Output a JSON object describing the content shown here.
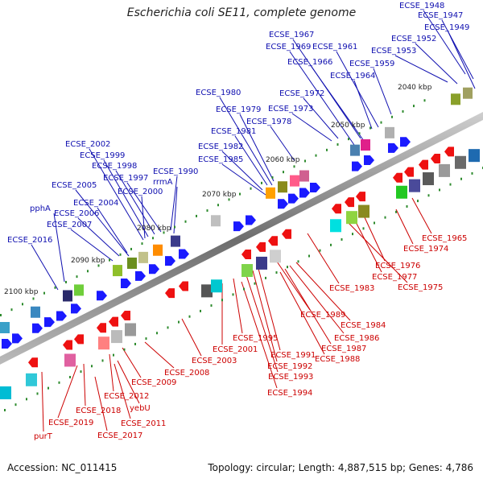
{
  "title": "Escherichia coli SE11, complete genome",
  "footer": {
    "accession": "Accession: NC_011415",
    "summary": "Topology: circular; Length: 4,887,515 bp; Genes: 4,786"
  },
  "colors": {
    "upper_label": "#1010b0",
    "lower_label": "#cc0000",
    "backbone": "#7d7d7d",
    "tick": "#2e8b2e"
  },
  "ticks": [
    {
      "kbp": 2040,
      "label": "2040 kbp"
    },
    {
      "kbp": 2050,
      "label": "2050 kbp"
    },
    {
      "kbp": 2060,
      "label": "2060 kbp"
    },
    {
      "kbp": 2070,
      "label": "2070 kbp"
    },
    {
      "kbp": 2080,
      "label": "2080 kbp"
    },
    {
      "kbp": 2090,
      "label": "2090 kbp"
    },
    {
      "kbp": 2100,
      "label": "2100 kbp"
    }
  ],
  "upper_labels": [
    "ECSE_1948",
    "ECSE_1947",
    "ECSE_1949",
    "ECSE_1952",
    "ECSE_1953",
    "ECSE_1967",
    "ECSE_1961",
    "ECSE_1969",
    "ECSE_1966",
    "ECSE_1959",
    "ECSE_1964",
    "ECSE_1980",
    "ECSE_1972",
    "ECSE_1979",
    "ECSE_1973",
    "ECSE_1978",
    "ECSE_1981",
    "ECSE_1982",
    "ECSE_1985",
    "ECSE_2002",
    "ECSE_1999",
    "ECSE_1998",
    "ECSE_1997",
    "ECSE_1990",
    "rrmA",
    "ECSE_2000",
    "ECSE_2005",
    "ECSE_2004",
    "pphA",
    "ECSE_2006",
    "ECSE_2007",
    "ECSE_2016"
  ],
  "lower_labels": [
    "ECSE_1965",
    "ECSE_1974",
    "ECSE_1976",
    "ECSE_1977",
    "ECSE_1975",
    "ECSE_1983",
    "ECSE_1984",
    "ECSE_1986",
    "ECSE_1987",
    "ECSE_1988",
    "ECSE_1989",
    "ECSE_1991",
    "ECSE_1992",
    "ECSE_1993",
    "ECSE_1994",
    "ECSE_1995",
    "ECSE_2001",
    "ECSE_2003",
    "ECSE_2008",
    "ECSE_2009",
    "ECSE_2012",
    "yebU",
    "ECSE_2011",
    "ECSE_2017",
    "ECSE_2018",
    "ECSE_2019",
    "purT"
  ]
}
